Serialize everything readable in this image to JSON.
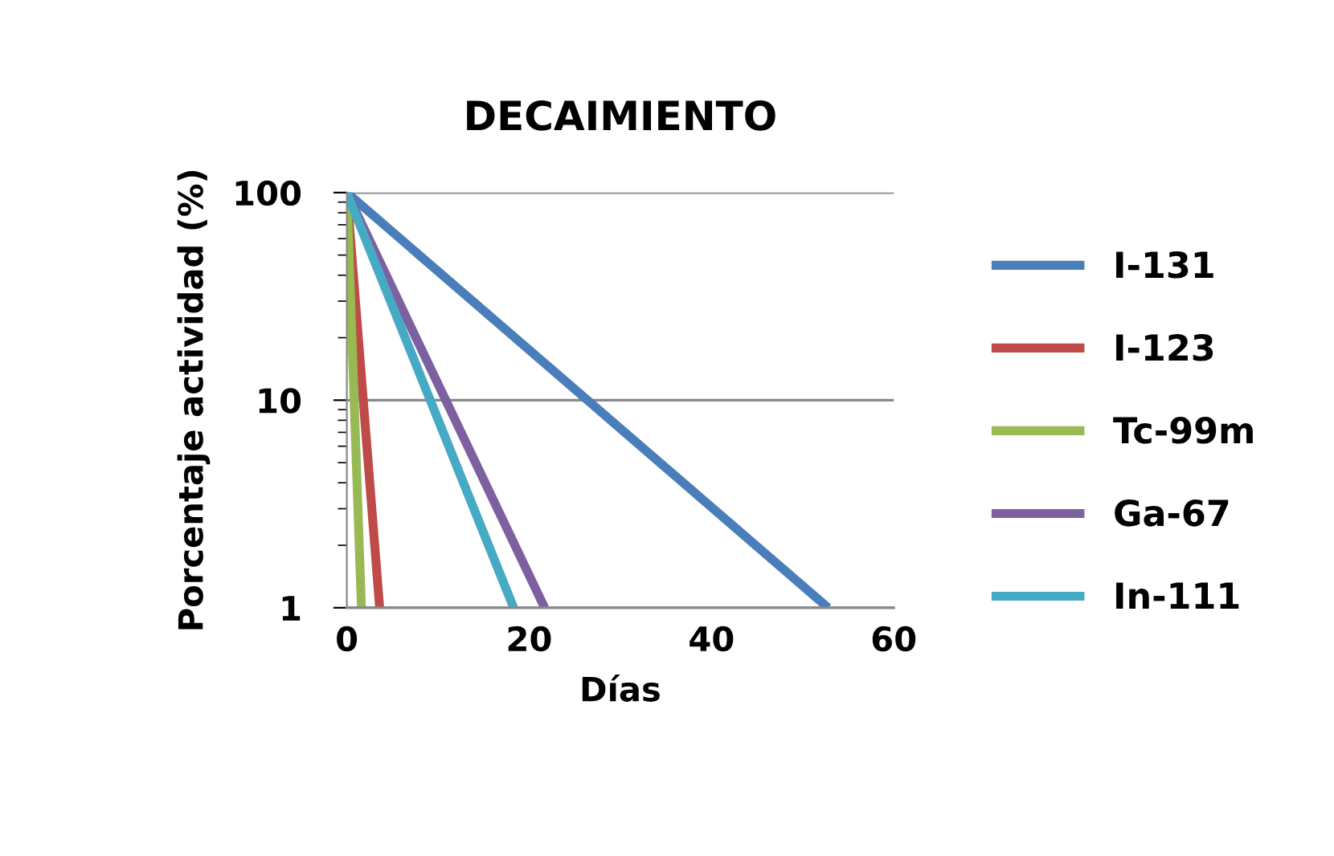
{
  "chart_data": {
    "type": "line",
    "title": "DECAIMIENTO",
    "xlabel": "Días",
    "ylabel": "Porcentaje actividad (%)",
    "log": "y",
    "grid": "y",
    "legend": "right",
    "marker": "none",
    "line_style": "solid",
    "xlim": [
      0,
      60
    ],
    "xticks": [
      0,
      20,
      40,
      60
    ],
    "ylim": [
      1,
      100
    ],
    "yticks": [
      1,
      10,
      100
    ],
    "series": [
      {
        "name": "I-131",
        "color": "#4a7ebb",
        "x": [
          0,
          52.8
        ],
        "values": [
          100,
          1
        ]
      },
      {
        "name": "I-123",
        "color": "#be4b48",
        "x": [
          0,
          3.6
        ],
        "values": [
          100,
          1
        ]
      },
      {
        "name": "Tc-99m",
        "color": "#98b954",
        "x": [
          0,
          1.6
        ],
        "values": [
          100,
          1
        ]
      },
      {
        "name": "Ga-67",
        "color": "#7d60a0",
        "x": [
          0,
          21.7
        ],
        "values": [
          100,
          1
        ]
      },
      {
        "name": "In-111",
        "color": "#46aac5",
        "x": [
          0,
          18.3
        ],
        "values": [
          100,
          1
        ]
      }
    ]
  }
}
